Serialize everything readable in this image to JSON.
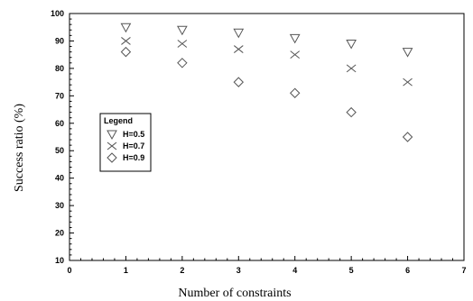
{
  "chart_data": {
    "type": "scatter",
    "xlabel": "Number of constraints",
    "ylabel": "Success ratio (%)",
    "xlim": [
      0,
      7
    ],
    "ylim": [
      10,
      100
    ],
    "x_ticks": [
      0,
      1,
      2,
      3,
      4,
      5,
      6,
      7
    ],
    "y_ticks": [
      10,
      20,
      30,
      40,
      50,
      60,
      70,
      80,
      90,
      100
    ],
    "grid": false,
    "legend": {
      "title": "Legend",
      "placement": "center-left"
    },
    "series": [
      {
        "name": "H=0.5",
        "marker": "triangle-down",
        "x": [
          1,
          2,
          3,
          4,
          5,
          6
        ],
        "y": [
          95,
          94,
          93,
          91,
          89,
          86
        ]
      },
      {
        "name": "H=0.7",
        "marker": "x",
        "x": [
          1,
          2,
          3,
          4,
          5,
          6
        ],
        "y": [
          90,
          89,
          87,
          85,
          80,
          75
        ]
      },
      {
        "name": "H=0.9",
        "marker": "diamond",
        "x": [
          1,
          2,
          3,
          4,
          5,
          6
        ],
        "y": [
          86,
          82,
          75,
          71,
          64,
          55
        ]
      }
    ],
    "colors": {
      "marker": "#555555",
      "axis": "#000000"
    }
  }
}
